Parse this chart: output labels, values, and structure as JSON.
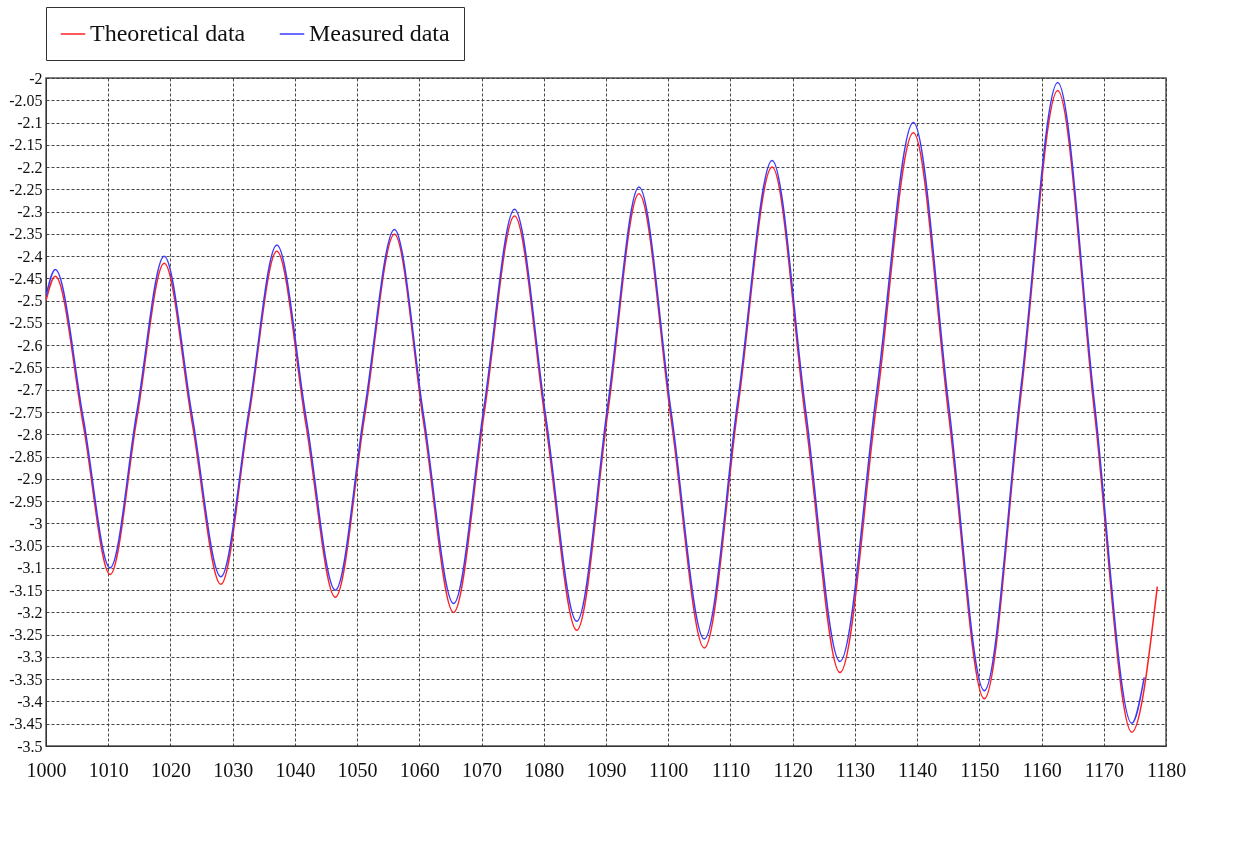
{
  "chart_data": {
    "type": "line",
    "legend": "top",
    "grid": true,
    "xlim": [
      1000,
      1180
    ],
    "xticks": [
      1000,
      1010,
      1020,
      1030,
      1040,
      1050,
      1060,
      1070,
      1080,
      1090,
      1100,
      1110,
      1120,
      1130,
      1140,
      1150,
      1160,
      1170,
      1180
    ],
    "ylim": [
      -3.5,
      -2
    ],
    "yticks": [
      -3.5,
      -3.45,
      -3.4,
      -3.35,
      -3.3,
      -3.25,
      -3.2,
      -3.15,
      -3.1,
      -3.05,
      -3,
      -2.95,
      -2.9,
      -2.85,
      -2.8,
      -2.75,
      -2.7,
      -2.65,
      -2.6,
      -2.55,
      -2.5,
      -2.45,
      -2.4,
      -2.35,
      -2.3,
      -2.25,
      -2.2,
      -2.15,
      -2.1,
      -2.05,
      -2
    ],
    "series": [
      {
        "name": "Theoretical data",
        "color": "#ff2020",
        "x": [
          1000,
          1001.5,
          1006,
          1010.3,
          1014.6,
          1019,
          1023.5,
          1028.1,
          1032.6,
          1037.1,
          1041.8,
          1046.5,
          1051.2,
          1056,
          1060.7,
          1065.5,
          1070.4,
          1075.3,
          1080.3,
          1085.3,
          1090.3,
          1095.3,
          1100.5,
          1105.8,
          1111.2,
          1116.7,
          1122.1,
          1127.6,
          1133.5,
          1139.4,
          1145.1,
          1150.8,
          1156.7,
          1162.6,
          1168.5,
          1174.5,
          1178.6
        ],
        "values": [
          -2.5,
          -2.445,
          -2.78,
          -3.115,
          -2.765,
          -2.416,
          -2.775,
          -3.137,
          -2.76,
          -2.389,
          -2.78,
          -3.166,
          -2.76,
          -2.351,
          -2.775,
          -3.2,
          -2.755,
          -2.31,
          -2.775,
          -3.24,
          -2.75,
          -2.26,
          -2.77,
          -3.28,
          -2.74,
          -2.2,
          -2.77,
          -3.335,
          -2.73,
          -2.123,
          -2.76,
          -3.394,
          -2.71,
          -2.028,
          -2.75,
          -3.469,
          -3.142
        ]
      },
      {
        "name": "Measured data",
        "color": "#3a3aff",
        "x": [
          1000,
          1001.5,
          1006,
          1010.3,
          1014.6,
          1019,
          1023.5,
          1028.1,
          1032.6,
          1037.1,
          1041.8,
          1046.5,
          1051.2,
          1056,
          1060.7,
          1065.5,
          1070.4,
          1075.3,
          1080.3,
          1085.3,
          1090.3,
          1095.3,
          1100.5,
          1105.8,
          1111.2,
          1116.7,
          1122.1,
          1127.6,
          1133.5,
          1139.4,
          1145.1,
          1150.8,
          1156.7,
          1162.6,
          1168.5,
          1174.5,
          1176.5
        ],
        "values": [
          -2.49,
          -2.43,
          -2.765,
          -3.1,
          -2.75,
          -2.4,
          -2.76,
          -3.12,
          -2.748,
          -2.375,
          -2.763,
          -3.15,
          -2.745,
          -2.34,
          -2.76,
          -3.18,
          -2.738,
          -2.295,
          -2.758,
          -3.22,
          -2.733,
          -2.245,
          -2.753,
          -3.26,
          -2.723,
          -2.185,
          -2.748,
          -3.31,
          -2.705,
          -2.1,
          -2.738,
          -3.376,
          -2.693,
          -2.01,
          -2.73,
          -3.449,
          -3.346
        ]
      }
    ]
  }
}
